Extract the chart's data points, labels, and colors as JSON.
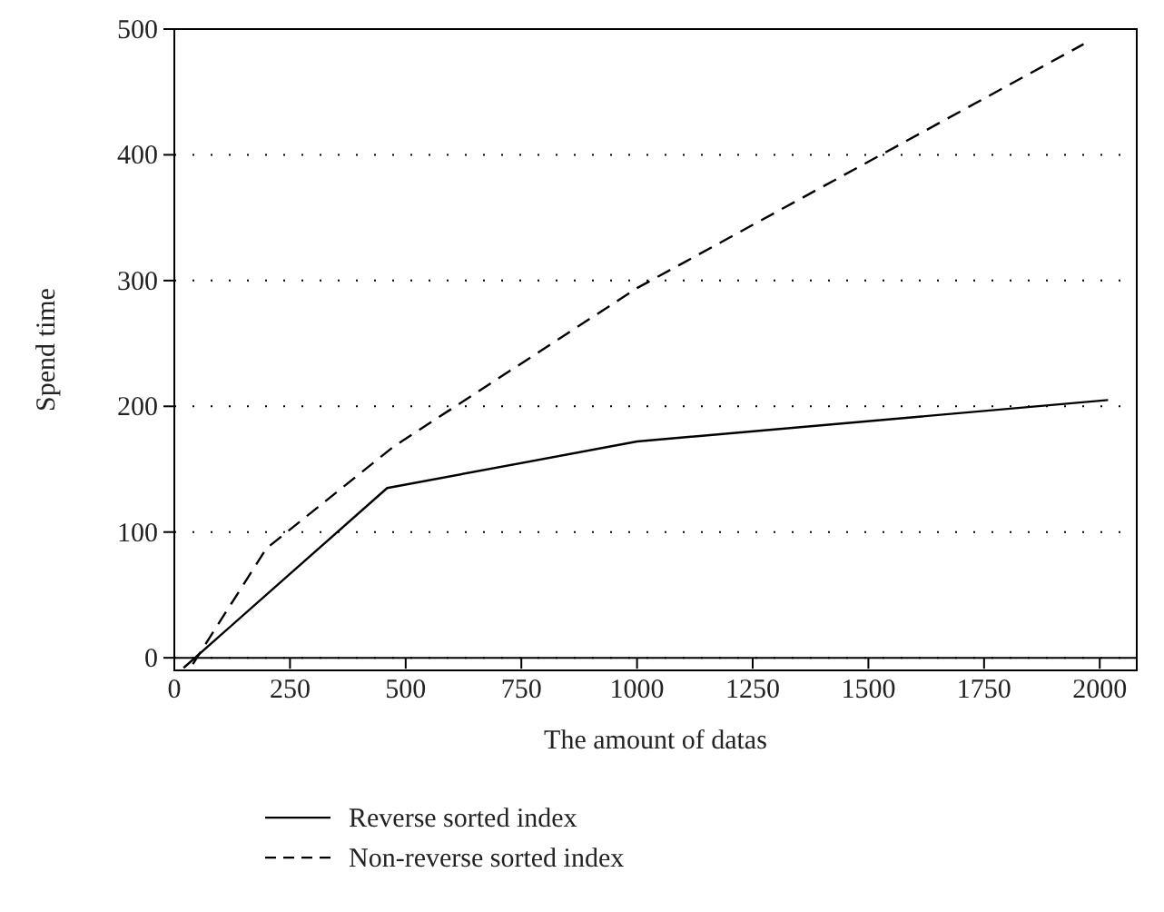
{
  "chart_data": {
    "type": "line",
    "xlabel": "The amount of datas",
    "ylabel": "Spend time",
    "xlim": [
      0,
      2080
    ],
    "ylim": [
      -10,
      500
    ],
    "xticks": [
      0,
      250,
      500,
      750,
      1000,
      1250,
      1500,
      1750,
      2000
    ],
    "yticks": [
      0,
      100,
      200,
      300,
      400,
      500
    ],
    "grid": "y",
    "legend": "bottom",
    "series": [
      {
        "name": "Reverse sorted index",
        "color": "#000000",
        "line_style": "solid",
        "x": [
          20,
          460,
          1000,
          2018
        ],
        "values": [
          -8,
          135,
          172,
          205
        ]
      },
      {
        "name": "Non-reverse sorted index",
        "color": "#000000",
        "line_style": "dashed",
        "x": [
          40,
          199,
          474,
          1000,
          1965
        ],
        "values": [
          -5,
          87,
          168,
          294,
          488
        ]
      }
    ]
  }
}
